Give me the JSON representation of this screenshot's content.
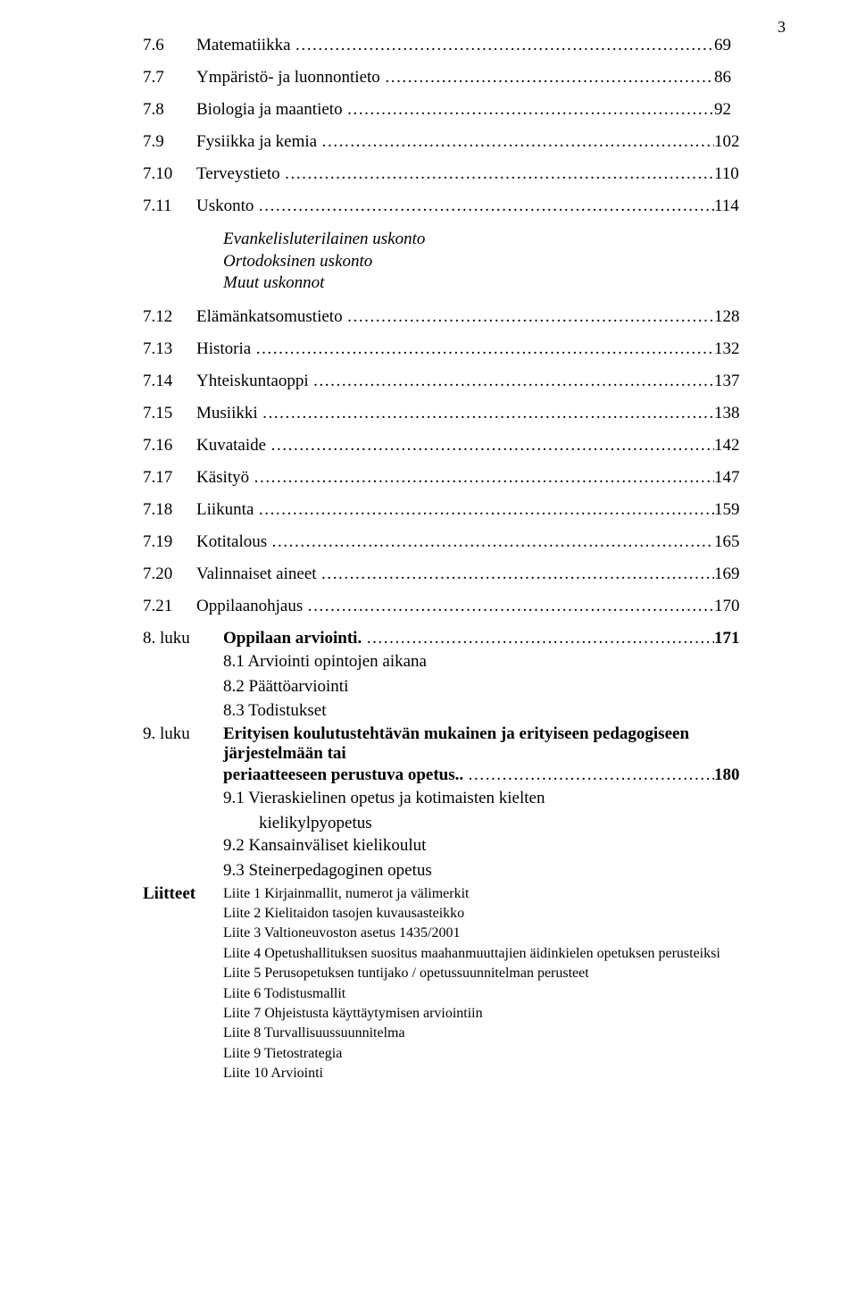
{
  "page_number": "3",
  "toc": [
    {
      "num": "7.6",
      "title": "Matematiikka",
      "page": "69"
    },
    {
      "num": "7.7",
      "title": "Ympäristö- ja luonnontieto",
      "page": "86"
    },
    {
      "num": "7.8",
      "title": "Biologia ja maantieto",
      "page": "92"
    },
    {
      "num": "7.9",
      "title": "Fysiikka ja kemia",
      "page": "102"
    },
    {
      "num": "7.10",
      "title": "Terveystieto",
      "page": "110"
    },
    {
      "num": "7.11",
      "title": "Uskonto",
      "page": "114",
      "subs": [
        "Evankelisluterilainen uskonto",
        "Ortodoksinen uskonto",
        "Muut uskonnot"
      ]
    },
    {
      "num": "7.12",
      "title": "Elämänkatsomustieto",
      "page": "128"
    },
    {
      "num": "7.13",
      "title": "Historia",
      "page": "132"
    },
    {
      "num": "7.14",
      "title": "Yhteiskuntaoppi",
      "page": "137"
    },
    {
      "num": "7.15",
      "title": "Musiikki",
      "page": "138"
    },
    {
      "num": "7.16",
      "title": "Kuvataide",
      "page": "142"
    },
    {
      "num": "7.17",
      "title": "Käsityö",
      "page": "147"
    },
    {
      "num": "7.18",
      "title": "Liikunta",
      "page": "159"
    },
    {
      "num": "7.19",
      "title": "Kotitalous",
      "page": "165"
    },
    {
      "num": "7.20",
      "title": "Valinnaiset aineet",
      "page": "169"
    },
    {
      "num": "7.21",
      "title": "Oppilaanohjaus",
      "page": "170"
    }
  ],
  "chapter8": {
    "label": "8. luku",
    "title": "Oppilaan arviointi",
    "page": "171",
    "subs": [
      "8.1  Arviointi opintojen aikana",
      "8.2  Päättöarviointi",
      "8.3  Todistukset"
    ]
  },
  "chapter9": {
    "label": "9. luku",
    "title_line1": "Erityisen koulutustehtävän mukainen ja erityiseen pedagogiseen järjestelmään tai",
    "title_line2": "periaatteeseen perustuva opetus",
    "page": "180",
    "subs": [
      "9.1  Vieraskielinen opetus ja kotimaisten kielten",
      "9.2  Kansainväliset kielikoulut",
      "9.3  Steinerpedagoginen opetus"
    ],
    "subsub": "kielikylpyopetus"
  },
  "liitteet": {
    "label": "Liitteet",
    "items": [
      "Liite 1 Kirjainmallit, numerot ja välimerkit",
      "Liite 2 Kielitaidon tasojen kuvausasteikko",
      "Liite 3 Valtioneuvoston asetus 1435/2001",
      "Liite 4 Opetushallituksen suositus maahanmuuttajien äidinkielen opetuksen perusteiksi",
      "Liite 5 Perusopetuksen tuntijako / opetussuunnitelman perusteet",
      "Liite 6 Todistusmallit",
      "Liite 7 Ohjeistusta käyttäytymisen arviointiin",
      "Liite 8 Turvallisuussuunnitelma",
      "Liite 9 Tietostrategia",
      "Liite 10 Arviointi"
    ]
  }
}
